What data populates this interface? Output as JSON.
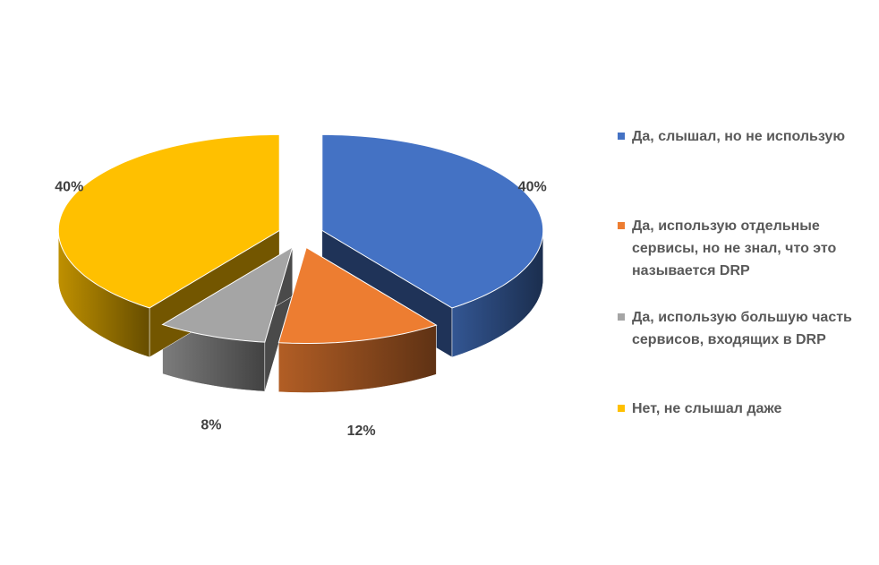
{
  "chart_data": {
    "type": "pie3d",
    "categories": [
      "Да, слышал, но не использую",
      "Да, использую отдельные сервисы, но не знал, что это называется DRP",
      "Да, использую большую часть сервисов, входящих в DRP",
      "Нет, не слышал даже"
    ],
    "values": [
      40,
      12,
      8,
      40
    ],
    "value_labels": [
      "40%",
      "12%",
      "8%",
      "40%"
    ],
    "colors": [
      "#4472c4",
      "#ed7d31",
      "#a5a5a5",
      "#ffc000"
    ],
    "legend": "right"
  }
}
